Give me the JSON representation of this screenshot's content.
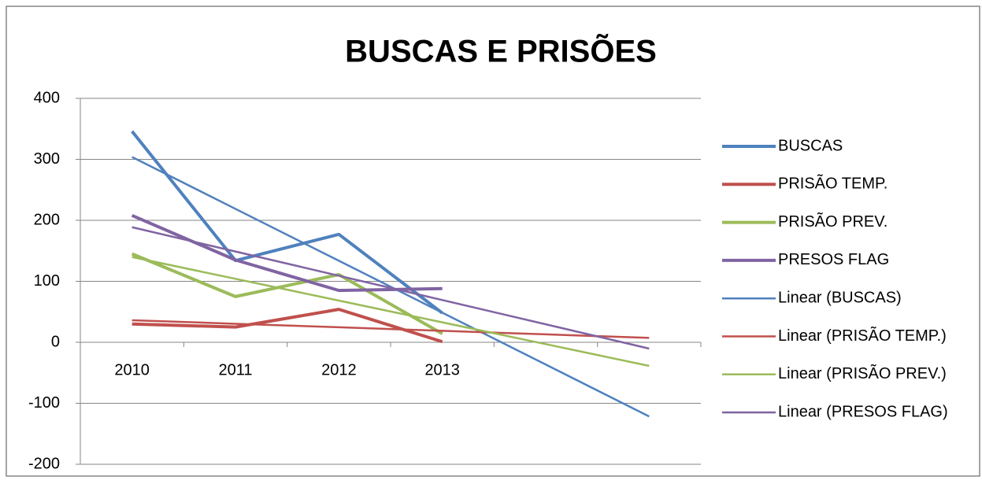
{
  "chart_data": {
    "type": "line",
    "title": "BUSCAS E PRISÕES",
    "categories": [
      "2010",
      "2011",
      "2012",
      "2013",
      null,
      null
    ],
    "ylim": [
      -200,
      400
    ],
    "yticks": [
      -200,
      -100,
      0,
      100,
      200,
      300,
      400
    ],
    "grid": true,
    "legend": "right",
    "series": [
      {
        "name": "BUSCAS",
        "color": "#4f81bd",
        "line_width": 4,
        "values": [
          346,
          134,
          177,
          48,
          null,
          null
        ]
      },
      {
        "name": "PRISÃO TEMP.",
        "color": "#c0504d",
        "line_width": 4,
        "values": [
          30,
          25,
          54,
          1,
          null,
          null
        ]
      },
      {
        "name": "PRISÃO PREV.",
        "color": "#9bbb59",
        "line_width": 4,
        "values": [
          145,
          75,
          111,
          14,
          null,
          null
        ]
      },
      {
        "name": "PRESOS FLAG",
        "color": "#8064a2",
        "line_width": 4,
        "values": [
          208,
          135,
          85,
          88,
          null,
          null
        ]
      },
      {
        "name": "Linear (BUSCAS)",
        "color": "#4f81bd",
        "line_width": 2.5,
        "values": [
          303.9,
          218.8,
          133.7,
          48.6,
          -36.5,
          -121.6
        ]
      },
      {
        "name": "Linear (PRISÃO TEMP.)",
        "color": "#c0504d",
        "line_width": 2.5,
        "values": [
          36.2,
          30.4,
          24.6,
          18.8,
          13,
          7.2
        ]
      },
      {
        "name": "Linear (PRISÃO PREV.)",
        "color": "#9bbb59",
        "line_width": 2.5,
        "values": [
          139.8,
          104.1,
          68.4,
          32.7,
          -3,
          -38.7
        ]
      },
      {
        "name": "Linear (PRESOS FLAG)",
        "color": "#8064a2",
        "line_width": 2.5,
        "values": [
          188.7,
          148.9,
          109.1,
          69.3,
          29.5,
          -10.3
        ]
      }
    ]
  }
}
